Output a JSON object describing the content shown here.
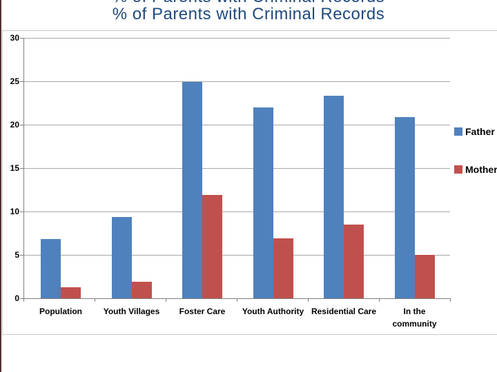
{
  "page": {
    "title": "% of Parents with Criminal Records"
  },
  "chart_data": {
    "type": "bar",
    "title": "% of Parents with Criminal Records",
    "categories": [
      "Population",
      "Youth Villages",
      "Foster Care",
      "Youth Authority",
      "Residential Care",
      "In the community"
    ],
    "series": [
      {
        "name": "Father",
        "color": "#4F81BD",
        "values": [
          6.8,
          9.4,
          24.9,
          22.0,
          23.3,
          20.9
        ]
      },
      {
        "name": "Mother",
        "color": "#C0504D",
        "values": [
          1.3,
          1.9,
          11.9,
          6.9,
          8.5,
          5.0
        ]
      }
    ],
    "xlabel": "",
    "ylabel": "",
    "ylim": [
      0,
      30
    ],
    "yticks": [
      0,
      5,
      10,
      15,
      20,
      25,
      30
    ],
    "grid": true,
    "legend_position": "right"
  },
  "colors": {
    "father_blue": "#4F81BD",
    "mother_red": "#C0504D",
    "title_text": "#1F497D",
    "left_edge_strip": "#503430"
  }
}
